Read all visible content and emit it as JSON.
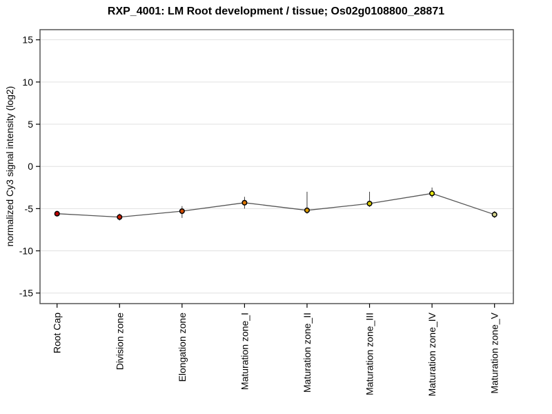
{
  "page": {
    "background": "#ffffff"
  },
  "chart_data": {
    "type": "line",
    "title": "RXP_4001: LM Root development / tissue; Os02g0108800_28871",
    "xlabel": "",
    "ylabel": "normalized Cy3 signal intensity (log2)",
    "categories": [
      "Root Cap",
      "Division zone",
      "Elongation zone",
      "Maturation zone_I",
      "Maturation zone_II",
      "Maturation zone_III",
      "Maturation zone_IV",
      "Maturation zone_V"
    ],
    "series": [
      {
        "name": "normalized Cy3 signal intensity (log2)",
        "values": [
          -5.6,
          -6.0,
          -5.3,
          -4.3,
          -5.2,
          -4.4,
          -3.2,
          -5.7
        ],
        "error_low": [
          -5.9,
          -6.4,
          -6.1,
          -5.0,
          -5.6,
          -4.8,
          -3.7,
          -6.1
        ],
        "error_high": [
          -5.3,
          -5.6,
          -4.7,
          -3.6,
          -3.0,
          -3.0,
          -2.5,
          -5.3
        ],
        "point_colors": [
          "#c00000",
          "#cc2000",
          "#d24a00",
          "#dd7700",
          "#dd9c00",
          "#d6c800",
          "#e8e811",
          "#d4d48e"
        ]
      }
    ],
    "ylim": [
      -16.25,
      16.2
    ],
    "yticks": [
      15,
      10,
      5,
      0,
      -5,
      -10,
      -15
    ],
    "x_tick_rotation": 90,
    "grid": true,
    "legend": "none",
    "line_color": "#555555",
    "error_bar_color": "#3a3a3a",
    "grid_color": "#e0e0e0",
    "border_color": "#555555",
    "tick_color": "#000000",
    "marker_outline": "#000000"
  }
}
